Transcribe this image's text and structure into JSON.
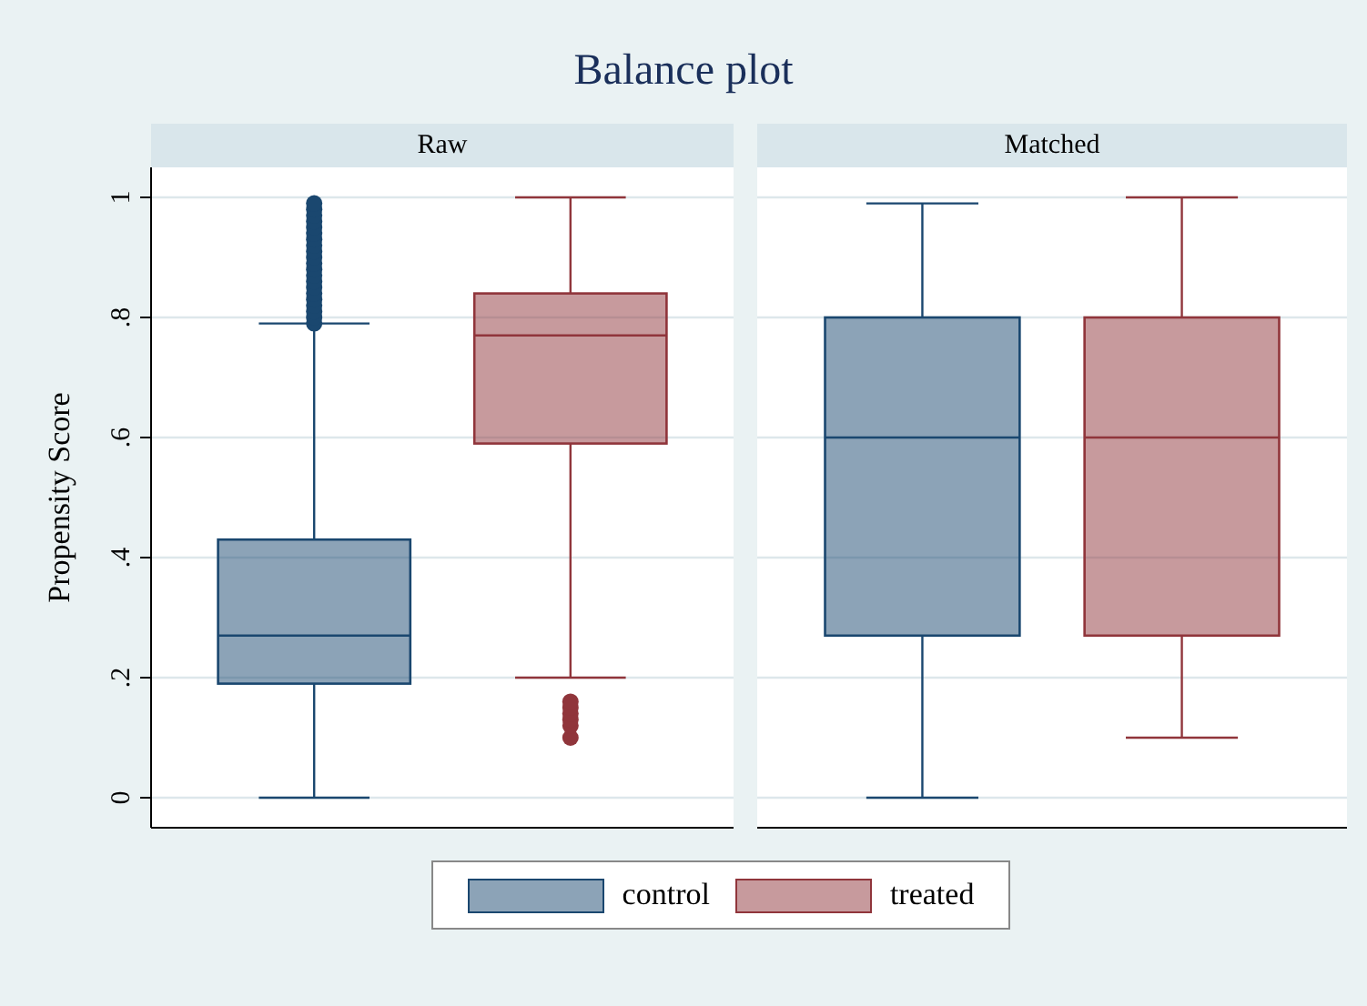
{
  "chart_data": {
    "type": "box",
    "title": "Balance plot",
    "ylabel": "Propensity Score",
    "categories": [
      "Raw",
      "Matched"
    ],
    "series": [
      {
        "name": "control",
        "color": "#1a476f",
        "boxes": [
          {
            "low": 0,
            "q1": 0.19,
            "median": 0.27,
            "q3": 0.43,
            "high": 0.79,
            "outliers": [
              0.79,
              0.8,
              0.81,
              0.82,
              0.83,
              0.84,
              0.85,
              0.86,
              0.87,
              0.88,
              0.89,
              0.9,
              0.91,
              0.92,
              0.93,
              0.94,
              0.95,
              0.96,
              0.97,
              0.98,
              0.99
            ]
          },
          {
            "low": 0,
            "q1": 0.27,
            "median": 0.6,
            "q3": 0.8,
            "high": 0.99
          }
        ]
      },
      {
        "name": "treated",
        "color": "#90353b",
        "boxes": [
          {
            "low": 0.2,
            "q1": 0.59,
            "median": 0.77,
            "q3": 0.84,
            "high": 1,
            "outliers": [
              0.1,
              0.12,
              0.13,
              0.14,
              0.15,
              0.16
            ]
          },
          {
            "low": 0.1,
            "q1": 0.27,
            "median": 0.6,
            "q3": 0.8,
            "high": 1
          }
        ]
      }
    ],
    "ylim": [
      -0.05,
      1.05
    ],
    "yticks": [
      0,
      {
        "value": 0.2,
        "label": ".2"
      },
      {
        "value": 0.4,
        "label": ".4"
      },
      {
        "value": 0.6,
        "label": ".6"
      },
      {
        "value": 0.8,
        "label": ".8"
      },
      1
    ],
    "grid": "y",
    "legend": "bottom"
  }
}
